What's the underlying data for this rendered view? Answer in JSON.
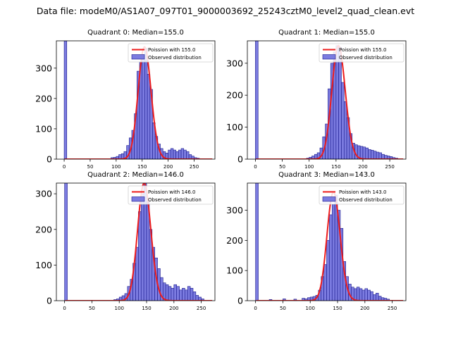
{
  "figure": {
    "suptitle": "Data file: modeM0/AS1A07_097T01_9000003692_25243cztM0_level2_quad_clean.evt"
  },
  "colors": {
    "bar_fill": "#7b7be0",
    "bar_edge": "#1a1a8c",
    "curve": "#ee1c1c",
    "axis": "#000000"
  },
  "chart_data": [
    {
      "type": "bar",
      "title": "Quadrant 0: Median=155.0",
      "legend": {
        "placement": "upper-right",
        "entries": [
          "Poission with 155.0",
          "Observed distribution"
        ]
      },
      "xlim": [
        -15,
        290
      ],
      "ylim": [
        0,
        390
      ],
      "xticks": [
        0,
        50,
        100,
        150,
        200,
        250
      ],
      "yticks": [
        0,
        100,
        200,
        300
      ],
      "bin_width": 5,
      "bins": [
        [
          0,
          390
        ],
        [
          90,
          5
        ],
        [
          95,
          6
        ],
        [
          100,
          9
        ],
        [
          105,
          15
        ],
        [
          110,
          18
        ],
        [
          115,
          25
        ],
        [
          120,
          45
        ],
        [
          125,
          70
        ],
        [
          130,
          95
        ],
        [
          135,
          150
        ],
        [
          140,
          290
        ],
        [
          145,
          320
        ],
        [
          150,
          345
        ],
        [
          155,
          365
        ],
        [
          160,
          280
        ],
        [
          165,
          230
        ],
        [
          170,
          120
        ],
        [
          175,
          75
        ],
        [
          180,
          50
        ],
        [
          185,
          35
        ],
        [
          190,
          25
        ],
        [
          195,
          20
        ],
        [
          200,
          30
        ],
        [
          205,
          35
        ],
        [
          210,
          30
        ],
        [
          215,
          25
        ],
        [
          220,
          30
        ],
        [
          225,
          35
        ],
        [
          230,
          30
        ],
        [
          235,
          25
        ],
        [
          240,
          15
        ],
        [
          245,
          10
        ],
        [
          250,
          5
        ],
        [
          255,
          3
        ]
      ],
      "poisson_lambda": 155.0,
      "poisson_peak": 370
    },
    {
      "type": "bar",
      "title": "Quadrant 1: Median=155.0",
      "legend": {
        "placement": "upper-right",
        "entries": [
          "Poission with 155.0",
          "Observed distribution"
        ]
      },
      "xlim": [
        -15,
        280
      ],
      "ylim": [
        0,
        370
      ],
      "xticks": [
        0,
        50,
        100,
        150,
        200,
        250
      ],
      "yticks": [
        0,
        100,
        200,
        300
      ],
      "bin_width": 5,
      "bins": [
        [
          0,
          370
        ],
        [
          95,
          3
        ],
        [
          100,
          6
        ],
        [
          105,
          10
        ],
        [
          110,
          15
        ],
        [
          115,
          20
        ],
        [
          120,
          35
        ],
        [
          125,
          70
        ],
        [
          130,
          110
        ],
        [
          135,
          220
        ],
        [
          140,
          300
        ],
        [
          145,
          335
        ],
        [
          150,
          355
        ],
        [
          155,
          350
        ],
        [
          160,
          240
        ],
        [
          165,
          180
        ],
        [
          170,
          130
        ],
        [
          175,
          80
        ],
        [
          180,
          50
        ],
        [
          185,
          45
        ],
        [
          190,
          42
        ],
        [
          195,
          40
        ],
        [
          200,
          38
        ],
        [
          205,
          35
        ],
        [
          210,
          30
        ],
        [
          215,
          28
        ],
        [
          220,
          25
        ],
        [
          225,
          22
        ],
        [
          230,
          20
        ],
        [
          235,
          15
        ],
        [
          240,
          12
        ],
        [
          245,
          10
        ],
        [
          250,
          8
        ],
        [
          255,
          5
        ],
        [
          260,
          3
        ]
      ],
      "poisson_lambda": 155.0,
      "poisson_peak": 355
    },
    {
      "type": "bar",
      "title": "Quadrant 2: Median=146.0",
      "legend": {
        "placement": "upper-right",
        "entries": [
          "Poission with 146.0",
          "Observed distribution"
        ]
      },
      "xlim": [
        -15,
        275
      ],
      "ylim": [
        0,
        330
      ],
      "xticks": [
        0,
        50,
        100,
        150,
        200,
        250
      ],
      "yticks": [
        0,
        100,
        200,
        300
      ],
      "bin_width": 5,
      "bins": [
        [
          0,
          330
        ],
        [
          90,
          3
        ],
        [
          95,
          5
        ],
        [
          100,
          10
        ],
        [
          105,
          14
        ],
        [
          110,
          20
        ],
        [
          115,
          40
        ],
        [
          120,
          60
        ],
        [
          125,
          105
        ],
        [
          130,
          150
        ],
        [
          135,
          250
        ],
        [
          140,
          300
        ],
        [
          145,
          330
        ],
        [
          150,
          280
        ],
        [
          155,
          200
        ],
        [
          160,
          150
        ],
        [
          165,
          120
        ],
        [
          170,
          90
        ],
        [
          175,
          65
        ],
        [
          180,
          50
        ],
        [
          185,
          45
        ],
        [
          190,
          40
        ],
        [
          195,
          35
        ],
        [
          200,
          45
        ],
        [
          205,
          40
        ],
        [
          210,
          30
        ],
        [
          215,
          35
        ],
        [
          220,
          30
        ],
        [
          225,
          40
        ],
        [
          230,
          35
        ],
        [
          235,
          25
        ],
        [
          240,
          15
        ],
        [
          245,
          10
        ],
        [
          250,
          5
        ]
      ],
      "poisson_lambda": 146.0,
      "poisson_peak": 330
    },
    {
      "type": "bar",
      "title": "Quadrant 3: Median=143.0",
      "legend": {
        "placement": "upper-right",
        "entries": [
          "Poission with 143.0",
          "Observed distribution"
        ]
      },
      "xlim": [
        -15,
        275
      ],
      "ylim": [
        0,
        390
      ],
      "xticks": [
        0,
        50,
        100,
        150,
        200,
        250
      ],
      "yticks": [
        0,
        100,
        200,
        300
      ],
      "bin_width": 5,
      "bins": [
        [
          0,
          390
        ],
        [
          25,
          4
        ],
        [
          50,
          6
        ],
        [
          70,
          5
        ],
        [
          85,
          8
        ],
        [
          90,
          6
        ],
        [
          95,
          10
        ],
        [
          100,
          12
        ],
        [
          105,
          14
        ],
        [
          110,
          18
        ],
        [
          115,
          35
        ],
        [
          120,
          80
        ],
        [
          125,
          120
        ],
        [
          130,
          200
        ],
        [
          135,
          285
        ],
        [
          140,
          320
        ],
        [
          145,
          350
        ],
        [
          150,
          300
        ],
        [
          155,
          240
        ],
        [
          160,
          130
        ],
        [
          165,
          80
        ],
        [
          170,
          55
        ],
        [
          175,
          45
        ],
        [
          180,
          40
        ],
        [
          185,
          45
        ],
        [
          190,
          40
        ],
        [
          195,
          35
        ],
        [
          200,
          40
        ],
        [
          205,
          35
        ],
        [
          210,
          30
        ],
        [
          215,
          20
        ],
        [
          220,
          25
        ],
        [
          225,
          15
        ],
        [
          230,
          10
        ],
        [
          235,
          8
        ],
        [
          240,
          5
        ]
      ],
      "poisson_lambda": 143.0,
      "poisson_peak": 360
    }
  ]
}
